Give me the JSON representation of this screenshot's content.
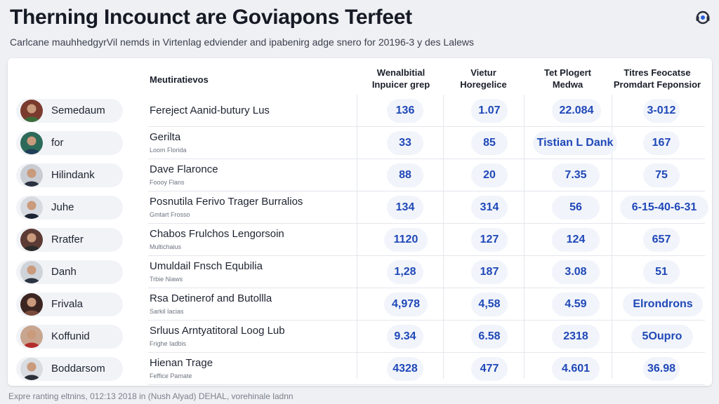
{
  "header": {
    "title": "Therning Incounct are Goviapons Terfeet",
    "subtitle": "Carlcane mauhhedgyrVil nemds in Virtenlag edviender and ipabenirg adge snero for 20196-3 y des Lalews",
    "help_icon": "headset-help-icon"
  },
  "table": {
    "columns": [
      {
        "label_1": "Meutiratievos",
        "label_2": ""
      },
      {
        "label_1": "Wenalbitial",
        "label_2": "Inpuicer grep"
      },
      {
        "label_1": "Vietur",
        "label_2": "Horegelice"
      },
      {
        "label_1": "Tet Plogert",
        "label_2": "Medwa"
      },
      {
        "label_1": "Titres Feocatse",
        "label_2": "Promdart Feponsior"
      }
    ],
    "rows": [
      {
        "name": "Semedaum",
        "desc": "Fereject Aanid-butury Lus",
        "sub": "",
        "v1": "136",
        "v2": "1.07",
        "v3": "22.084",
        "v4": "3-012"
      },
      {
        "name": "for",
        "desc": "Gerilta",
        "sub": "Loom Florida",
        "v1": "33",
        "v2": "85",
        "v3": "Tistian L Dank",
        "v4": "167"
      },
      {
        "name": "Hilindank",
        "desc": "Dave Flaronce",
        "sub": "Foooy Flans",
        "v1": "88",
        "v2": "20",
        "v3": "7.35",
        "v4": "75"
      },
      {
        "name": "Juhe",
        "desc": "Posnutila Ferivo Trager Burralios",
        "sub": "Gmtart Frosso",
        "v1": "134",
        "v2": "314",
        "v3": "56",
        "v4": "6-15-40-6-31"
      },
      {
        "name": "Rratfer",
        "desc": "Chabos Frulchos Lengorsoin",
        "sub": "Multichaius",
        "v1": "1120",
        "v2": "127",
        "v3": "124",
        "v4": "657"
      },
      {
        "name": "Danh",
        "desc": "Umuldail Fnsch Equbilia",
        "sub": "Trbie Niaws",
        "v1": "1,28",
        "v2": "187",
        "v3": "3.08",
        "v4": "51"
      },
      {
        "name": "Frivala",
        "desc": "Rsa Detinerof and Butollla",
        "sub": "Sarkil Iacias",
        "v1": "4,978",
        "v2": "4,58",
        "v3": "4.59",
        "v4": "Elrondrons"
      },
      {
        "name": "Koffunid",
        "desc": "Srluus Arntyatitoral Loog Lub",
        "sub": "Frighe Iadbis",
        "v1": "9.34",
        "v2": "6.58",
        "v3": "2318",
        "v4": "5Oupro"
      },
      {
        "name": "Boddarsom",
        "desc": "Hienan Trage",
        "sub": "Feffice Pamate",
        "v1": "4328",
        "v2": "477",
        "v3": "4.601",
        "v4": "36.98"
      }
    ]
  },
  "footer": {
    "text": "Expre ranting eltnins, 012:13 2018 in (Nush Alyad) DEHAL, vorehinale ladnn"
  },
  "colors": {
    "value_text": "#1f48b8",
    "pill_bg": "#f1f4fa",
    "page_bg": "#eef0f4"
  }
}
